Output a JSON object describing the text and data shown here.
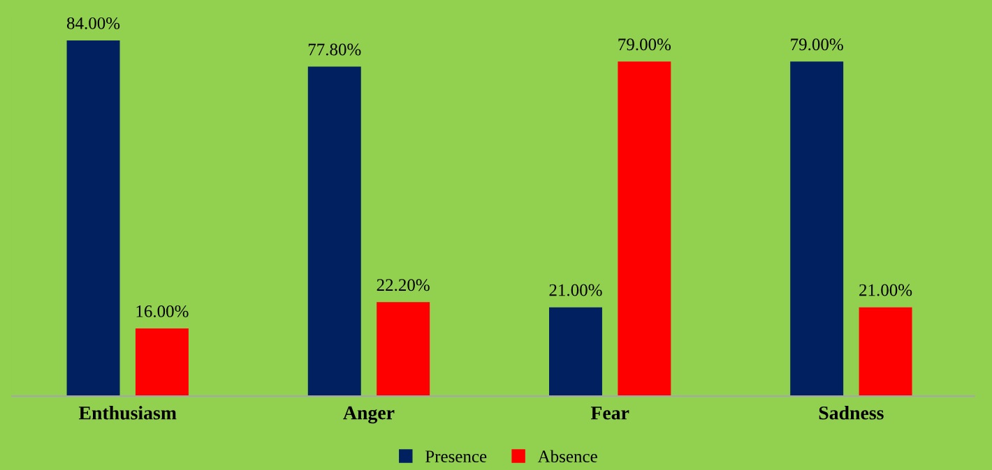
{
  "chart_data": {
    "type": "bar",
    "categories": [
      "Enthusiasm",
      "Anger",
      "Fear",
      "Sadness"
    ],
    "series": [
      {
        "name": "Presence",
        "color": "#002060",
        "values": [
          84.0,
          77.8,
          21.0,
          79.0
        ],
        "value_labels": [
          "84.00%",
          "77.80%",
          "21.00%",
          "79.00%"
        ]
      },
      {
        "name": "Absence",
        "color": "#ff0000",
        "values": [
          16.0,
          22.2,
          79.0,
          21.0
        ],
        "value_labels": [
          "16.00%",
          "22.20%",
          "79.00%",
          "21.00%"
        ]
      }
    ],
    "grid": false,
    "legend": "bottom"
  }
}
